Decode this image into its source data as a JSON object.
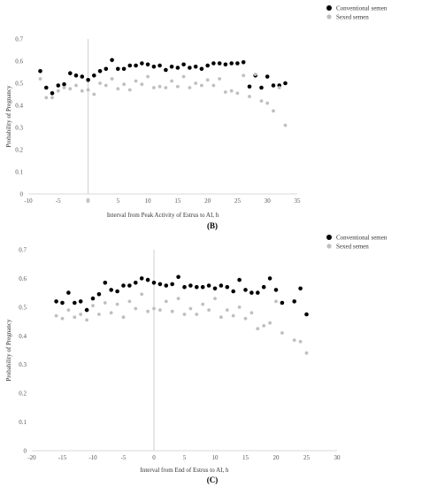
{
  "colors": {
    "conventional": "#000000",
    "sexed": "#bfbfbf"
  },
  "chart_data": [
    {
      "type": "scatter",
      "panel_label": "(B)",
      "xlabel": "Interval from Peak Activity of Estrus to AI, h",
      "ylabel": "Probability of Pregnancy",
      "xlim": [
        -10,
        35
      ],
      "ylim": [
        0,
        0.7
      ],
      "xticks": [
        "-10",
        "-5",
        "0",
        "5",
        "10",
        "15",
        "20",
        "25",
        "30",
        "35"
      ],
      "yticks": [
        "0",
        "0.1",
        "0.2",
        "0.3",
        "0.4",
        "0.5",
        "0.6",
        "0.7"
      ],
      "grid": false,
      "legend_position": "top-right",
      "series": [
        {
          "name": "Conventional semen",
          "x": [
            -8,
            -7,
            -6,
            -5,
            -4,
            -3,
            -2,
            -1,
            0,
            1,
            2,
            3,
            4,
            5,
            6,
            7,
            8,
            9,
            10,
            11,
            12,
            13,
            14,
            15,
            16,
            17,
            18,
            19,
            20,
            21,
            22,
            23,
            24,
            25,
            26,
            27,
            28,
            29,
            30,
            31,
            32,
            33
          ],
          "y": [
            0.555,
            0.48,
            0.455,
            0.49,
            0.495,
            0.545,
            0.535,
            0.53,
            0.515,
            0.535,
            0.555,
            0.565,
            0.605,
            0.565,
            0.565,
            0.58,
            0.58,
            0.59,
            0.585,
            0.575,
            0.58,
            0.56,
            0.575,
            0.57,
            0.585,
            0.57,
            0.575,
            0.565,
            0.58,
            0.59,
            0.59,
            0.585,
            0.59,
            0.59,
            0.595,
            0.485,
            0.535,
            0.48,
            0.53,
            0.49,
            0.49,
            0.5
          ]
        },
        {
          "name": "Sexed semen",
          "x": [
            -8,
            -7,
            -6,
            -5,
            -4,
            -3,
            -2,
            -1,
            0,
            1,
            2,
            3,
            4,
            5,
            6,
            7,
            8,
            9,
            10,
            11,
            12,
            13,
            14,
            15,
            16,
            17,
            18,
            19,
            20,
            21,
            22,
            23,
            24,
            25,
            26,
            27,
            28,
            29,
            30,
            31,
            32,
            33
          ],
          "y": [
            0.52,
            0.435,
            0.435,
            0.465,
            0.48,
            0.475,
            0.49,
            0.465,
            0.47,
            0.45,
            0.5,
            0.49,
            0.52,
            0.475,
            0.495,
            0.47,
            0.51,
            0.495,
            0.53,
            0.48,
            0.485,
            0.48,
            0.51,
            0.485,
            0.53,
            0.48,
            0.5,
            0.49,
            0.515,
            0.49,
            0.52,
            0.46,
            0.465,
            0.455,
            0.535,
            0.44,
            0.54,
            0.42,
            0.41,
            0.375,
            0.48,
            0.31
          ]
        }
      ]
    },
    {
      "type": "scatter",
      "panel_label": "(C)",
      "xlabel": "Interval from End of Estrus to AI, h",
      "ylabel": "Probability of Pregnancy",
      "xlim": [
        -20,
        30
      ],
      "ylim": [
        0,
        0.7
      ],
      "xticks": [
        "-20",
        "-15",
        "-10",
        "-5",
        "0",
        "5",
        "10",
        "15",
        "20",
        "25",
        "30"
      ],
      "yticks": [
        "0",
        "0.1",
        "0.2",
        "0.3",
        "0.4",
        "0.5",
        "0.6",
        "0.7"
      ],
      "grid": false,
      "legend_position": "top-right",
      "series": [
        {
          "name": "Conventional semen",
          "x": [
            -16,
            -15,
            -14,
            -13,
            -12,
            -11,
            -10,
            -9,
            -8,
            -7,
            -6,
            -5,
            -4,
            -3,
            -2,
            -1,
            0,
            1,
            2,
            3,
            4,
            5,
            6,
            7,
            8,
            9,
            10,
            11,
            12,
            13,
            14,
            15,
            16,
            17,
            18,
            19,
            20,
            21,
            23,
            24,
            25
          ],
          "y": [
            0.52,
            0.515,
            0.55,
            0.515,
            0.52,
            0.49,
            0.53,
            0.545,
            0.585,
            0.56,
            0.555,
            0.575,
            0.575,
            0.585,
            0.6,
            0.595,
            0.585,
            0.58,
            0.575,
            0.58,
            0.605,
            0.57,
            0.575,
            0.57,
            0.57,
            0.575,
            0.565,
            0.575,
            0.57,
            0.555,
            0.595,
            0.56,
            0.55,
            0.55,
            0.57,
            0.6,
            0.56,
            0.515,
            0.52,
            0.565,
            0.475
          ]
        },
        {
          "name": "Sexed semen",
          "x": [
            -16,
            -15,
            -14,
            -13,
            -12,
            -11,
            -10,
            -9,
            -8,
            -7,
            -6,
            -5,
            -4,
            -3,
            -2,
            -1,
            0,
            1,
            2,
            3,
            4,
            5,
            6,
            7,
            8,
            9,
            10,
            11,
            12,
            13,
            14,
            15,
            16,
            17,
            18,
            19,
            20,
            21,
            23,
            24,
            25
          ],
          "y": [
            0.47,
            0.46,
            0.49,
            0.465,
            0.475,
            0.455,
            0.505,
            0.475,
            0.515,
            0.48,
            0.51,
            0.465,
            0.52,
            0.495,
            0.545,
            0.485,
            0.495,
            0.49,
            0.52,
            0.485,
            0.53,
            0.475,
            0.495,
            0.475,
            0.51,
            0.49,
            0.53,
            0.465,
            0.49,
            0.47,
            0.5,
            0.46,
            0.48,
            0.425,
            0.435,
            0.445,
            0.52,
            0.41,
            0.385,
            0.38,
            0.34
          ]
        }
      ]
    }
  ]
}
